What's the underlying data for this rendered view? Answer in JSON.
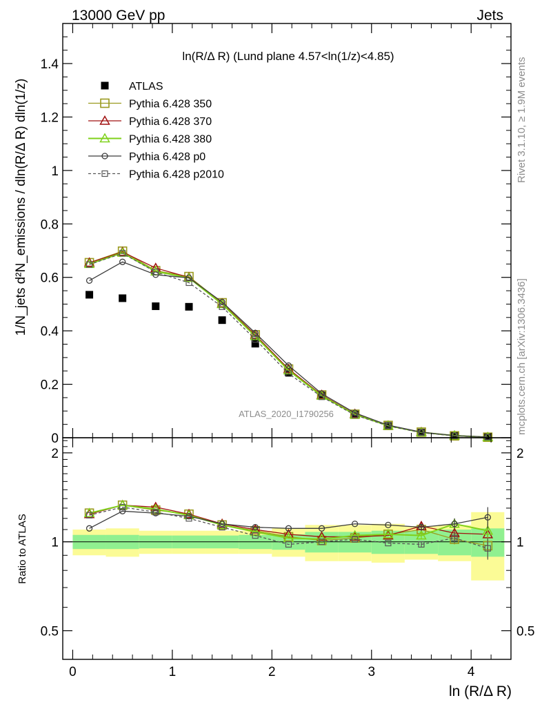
{
  "header": {
    "left": "13000 GeV pp",
    "right": "Jets"
  },
  "side_labels": {
    "rivet": "Rivet 3.1.10, ≥ 1.9M events",
    "mcplots": "mcplots.cern.ch [arXiv:1306.3436]"
  },
  "watermark": "ATLAS_2020_I1790256",
  "chart_data": [
    {
      "type": "scatter",
      "panel": "main",
      "title": "ln(R/Δ R) (Lund plane 4.57<ln(1/z)<4.85)",
      "ylabel": "1/N_jets d²N_emissions / dln(R/Δ R) dln(1/z)",
      "ylim": [
        0,
        1.55
      ],
      "yticks": [
        0,
        0.2,
        0.4,
        0.6,
        0.8,
        1,
        1.2,
        1.4
      ],
      "ytick_labels": [
        "0",
        "0.2",
        "0.4",
        "0.6",
        "0.8",
        "1",
        "1.2",
        "1.4"
      ],
      "xlim": [
        -0.1,
        4.4
      ],
      "x": [
        0.167,
        0.5,
        0.833,
        1.167,
        1.5,
        1.833,
        2.167,
        2.5,
        2.833,
        3.167,
        3.5,
        3.833,
        4.167
      ],
      "legend_position": "top-left",
      "series": [
        {
          "name": "ATLAS",
          "color": "#000000",
          "marker": "filled-square",
          "line": "none",
          "values": [
            0.535,
            0.522,
            0.492,
            0.49,
            0.44,
            0.352,
            0.245,
            0.158,
            0.087,
            0.044,
            0.019,
            0.007,
            0.002
          ]
        },
        {
          "name": "Pythia 6.428 350",
          "color": "#9a9a1e",
          "marker": "open-square",
          "line": "solid",
          "values": [
            0.655,
            0.698,
            0.625,
            0.603,
            0.505,
            0.385,
            0.257,
            0.16,
            0.088,
            0.046,
            0.021,
            0.007,
            0.002
          ]
        },
        {
          "name": "Pythia 6.428 370",
          "color": "#a01010",
          "marker": "open-triangle",
          "line": "solid",
          "values": [
            0.655,
            0.695,
            0.635,
            0.6,
            0.502,
            0.385,
            0.257,
            0.16,
            0.089,
            0.045,
            0.021,
            0.008,
            0.002
          ]
        },
        {
          "name": "Pythia 6.428 380",
          "color": "#7fd11a",
          "marker": "open-triangle",
          "line": "solid",
          "values": [
            0.65,
            0.692,
            0.622,
            0.598,
            0.5,
            0.38,
            0.252,
            0.157,
            0.087,
            0.045,
            0.02,
            0.008,
            0.002
          ]
        },
        {
          "name": "Pythia 6.428 p0",
          "color": "#3c3c3c",
          "marker": "open-circle",
          "line": "solid",
          "values": [
            0.588,
            0.658,
            0.61,
            0.598,
            0.508,
            0.392,
            0.27,
            0.165,
            0.093,
            0.047,
            0.021,
            0.008,
            0.003
          ]
        },
        {
          "name": "Pythia 6.428 p2010",
          "color": "#555555",
          "marker": "open-square-small",
          "line": "dashed",
          "values": [
            0.648,
            0.69,
            0.62,
            0.58,
            0.49,
            0.368,
            0.24,
            0.153,
            0.085,
            0.044,
            0.019,
            0.007,
            0.002
          ]
        }
      ]
    },
    {
      "type": "scatter",
      "panel": "ratio",
      "ylabel": "Ratio to ATLAS",
      "xlabel": "ln (R/Δ R)",
      "ylim": [
        0.4,
        2.25
      ],
      "y_scale": "log",
      "yticks": [
        0.5,
        1,
        2
      ],
      "ytick_labels": [
        "0.5",
        "1",
        "2"
      ],
      "xlim": [
        -0.1,
        4.4
      ],
      "xticks": [
        0,
        1,
        2,
        3,
        4
      ],
      "xtick_labels": [
        "0",
        "1",
        "2",
        "3",
        "4"
      ],
      "x_edges": [
        0,
        0.333,
        0.667,
        1,
        1.333,
        1.667,
        2,
        2.333,
        2.667,
        3,
        3.333,
        3.667,
        4,
        4.333
      ],
      "x": [
        0.167,
        0.5,
        0.833,
        1.167,
        1.5,
        1.833,
        2.167,
        2.5,
        2.833,
        3.167,
        3.5,
        3.833,
        4.167
      ],
      "band_inner": [
        0.055,
        0.055,
        0.05,
        0.05,
        0.05,
        0.055,
        0.06,
        0.08,
        0.08,
        0.09,
        0.09,
        0.1,
        0.11
      ],
      "band_outer": [
        0.1,
        0.11,
        0.09,
        0.09,
        0.09,
        0.09,
        0.11,
        0.14,
        0.14,
        0.15,
        0.13,
        0.14,
        0.26
      ],
      "band_colors": {
        "inner": "#90f090",
        "outer": "#fbfb96"
      },
      "series": [
        {
          "name": "Pythia 6.428 350",
          "values": [
            1.25,
            1.33,
            1.28,
            1.24,
            1.14,
            1.09,
            1.04,
            1.01,
            1.03,
            1.06,
            1.1,
            1.02,
            0.97
          ],
          "errors": [
            0,
            0,
            0,
            0,
            0,
            0,
            0,
            0,
            0,
            0,
            0.02,
            0.04,
            0.09
          ]
        },
        {
          "name": "Pythia 6.428 370",
          "values": [
            1.24,
            1.33,
            1.31,
            1.24,
            1.15,
            1.1,
            1.06,
            1.04,
            1.04,
            1.05,
            1.13,
            1.07,
            1.06
          ],
          "errors": [
            0,
            0,
            0,
            0,
            0,
            0,
            0,
            0,
            0,
            0,
            0.03,
            0.05,
            0.09
          ]
        },
        {
          "name": "Pythia 6.428 380",
          "values": [
            1.25,
            1.33,
            1.29,
            1.23,
            1.14,
            1.08,
            1.03,
            1.02,
            1.05,
            1.06,
            1.05,
            1.15,
            1.09
          ],
          "errors": [
            0,
            0,
            0,
            0,
            0,
            0,
            0,
            0,
            0,
            0,
            0.03,
            0.05,
            0.09
          ]
        },
        {
          "name": "Pythia 6.428 p0",
          "values": [
            1.11,
            1.27,
            1.25,
            1.22,
            1.15,
            1.12,
            1.11,
            1.11,
            1.15,
            1.14,
            1.12,
            1.15,
            1.21
          ],
          "errors": [
            0,
            0,
            0,
            0,
            0,
            0,
            0,
            0,
            0,
            0,
            0.03,
            0.05,
            0.1
          ]
        },
        {
          "name": "Pythia 6.428 p2010",
          "values": [
            1.23,
            1.31,
            1.26,
            1.2,
            1.12,
            1.05,
            0.98,
            1.0,
            1.02,
            0.99,
            0.98,
            1.03,
            0.95
          ],
          "errors": [
            0,
            0,
            0,
            0,
            0,
            0,
            0,
            0,
            0,
            0,
            0.02,
            0.04,
            0.08
          ]
        }
      ]
    }
  ]
}
